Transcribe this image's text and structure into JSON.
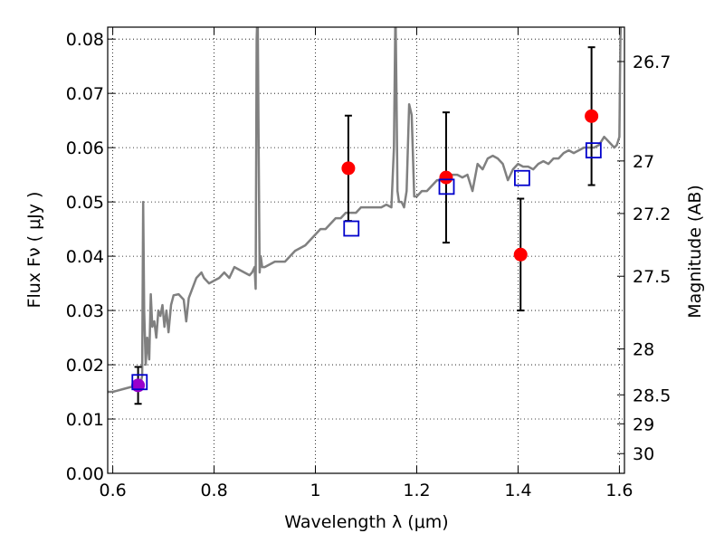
{
  "chart_data": {
    "type": "scatter",
    "xlabel": "Wavelength  λ (μm)",
    "ylabel": "Flux  Fν  ( μJy )",
    "y2label": "Magnitude (AB)",
    "xlim": [
      0.59,
      1.61
    ],
    "ylim": [
      0.0,
      0.0822
    ],
    "x_ticks": [
      0.6,
      0.8,
      1.0,
      1.2,
      1.4,
      1.6
    ],
    "x_tick_labels": [
      "0.6",
      "0.8",
      "1",
      "1.2",
      "1.4",
      "1.6"
    ],
    "y_ticks": [
      0.0,
      0.01,
      0.02,
      0.03,
      0.04,
      0.05,
      0.06,
      0.07,
      0.08
    ],
    "y_tick_labels": [
      "0.00",
      "0.01",
      "0.02",
      "0.03",
      "0.04",
      "0.05",
      "0.06",
      "0.07",
      "0.08"
    ],
    "y2_ticks": [
      26.7,
      27,
      27.2,
      27.5,
      28,
      28.5,
      29,
      30
    ],
    "y2_tick_labels": [
      "26.7",
      "27",
      "27.2",
      "27.5",
      "28",
      "28.5",
      "29",
      "30"
    ],
    "grid": true,
    "colors": {
      "model": "#808080",
      "observed": "#ff0000",
      "observed_first": "#9900cc",
      "model_band": "#0000cc",
      "errorbar": "#000000"
    },
    "series": [
      {
        "kind": "model_spectrum",
        "x": [
          0.59,
          0.6,
          0.62,
          0.64,
          0.65,
          0.655,
          0.658,
          0.66,
          0.662,
          0.665,
          0.668,
          0.672,
          0.675,
          0.678,
          0.682,
          0.686,
          0.69,
          0.694,
          0.698,
          0.702,
          0.706,
          0.71,
          0.715,
          0.72,
          0.73,
          0.74,
          0.745,
          0.75,
          0.765,
          0.775,
          0.78,
          0.79,
          0.8,
          0.81,
          0.82,
          0.83,
          0.84,
          0.85,
          0.86,
          0.87,
          0.875,
          0.88,
          0.882,
          0.884,
          0.886,
          0.888,
          0.89,
          0.892,
          0.895,
          0.9,
          0.91,
          0.92,
          0.93,
          0.94,
          0.95,
          0.96,
          0.97,
          0.98,
          0.99,
          1.0,
          1.01,
          1.02,
          1.03,
          1.04,
          1.05,
          1.06,
          1.07,
          1.08,
          1.09,
          1.1,
          1.11,
          1.12,
          1.13,
          1.14,
          1.15,
          1.155,
          1.158,
          1.16,
          1.162,
          1.165,
          1.17,
          1.175,
          1.18,
          1.185,
          1.19,
          1.195,
          1.2,
          1.21,
          1.22,
          1.23,
          1.24,
          1.25,
          1.26,
          1.27,
          1.28,
          1.29,
          1.3,
          1.31,
          1.32,
          1.33,
          1.34,
          1.35,
          1.36,
          1.37,
          1.38,
          1.39,
          1.4,
          1.41,
          1.42,
          1.43,
          1.44,
          1.45,
          1.46,
          1.47,
          1.48,
          1.49,
          1.5,
          1.51,
          1.52,
          1.53,
          1.54,
          1.55,
          1.56,
          1.57,
          1.58,
          1.59,
          1.595,
          1.6,
          1.602,
          1.604
        ],
        "y": [
          0.015,
          0.015,
          0.0155,
          0.016,
          0.0162,
          0.0165,
          0.018,
          0.05,
          0.03,
          0.02,
          0.025,
          0.021,
          0.033,
          0.027,
          0.028,
          0.025,
          0.03,
          0.029,
          0.031,
          0.027,
          0.03,
          0.026,
          0.031,
          0.0328,
          0.033,
          0.032,
          0.028,
          0.0323,
          0.036,
          0.037,
          0.036,
          0.035,
          0.0355,
          0.036,
          0.037,
          0.036,
          0.038,
          0.0375,
          0.037,
          0.0365,
          0.037,
          0.038,
          0.034,
          0.08,
          0.086,
          0.06,
          0.037,
          0.04,
          0.038,
          0.038,
          0.0385,
          0.039,
          0.039,
          0.039,
          0.04,
          0.041,
          0.0415,
          0.042,
          0.043,
          0.044,
          0.045,
          0.045,
          0.046,
          0.047,
          0.047,
          0.048,
          0.048,
          0.048,
          0.049,
          0.049,
          0.049,
          0.049,
          0.049,
          0.0495,
          0.049,
          0.06,
          0.086,
          0.07,
          0.052,
          0.05,
          0.05,
          0.049,
          0.052,
          0.068,
          0.066,
          0.051,
          0.051,
          0.052,
          0.052,
          0.053,
          0.054,
          0.054,
          0.055,
          0.055,
          0.055,
          0.0545,
          0.055,
          0.052,
          0.057,
          0.056,
          0.058,
          0.0585,
          0.058,
          0.057,
          0.054,
          0.056,
          0.057,
          0.0565,
          0.0565,
          0.056,
          0.057,
          0.0575,
          0.057,
          0.058,
          0.058,
          0.059,
          0.0595,
          0.059,
          0.0595,
          0.06,
          0.06,
          0.06,
          0.0605,
          0.062,
          0.061,
          0.06,
          0.0605,
          0.062,
          0.08,
          0.086
        ]
      },
      {
        "kind": "observed_photometry",
        "x": [
          0.65,
          1.065,
          1.258,
          1.405,
          1.545
        ],
        "y": [
          0.0162,
          0.0562,
          0.0545,
          0.0403,
          0.0658
        ],
        "yerr_low": [
          0.0034,
          0.0097,
          0.012,
          0.0103,
          0.0127
        ],
        "yerr_high": [
          0.0034,
          0.0097,
          0.012,
          0.0103,
          0.0127
        ]
      },
      {
        "kind": "model_band_photometry",
        "x": [
          0.653,
          1.071,
          1.259,
          1.408,
          1.549
        ],
        "y": [
          0.0168,
          0.0451,
          0.0528,
          0.0544,
          0.0595
        ]
      }
    ]
  }
}
